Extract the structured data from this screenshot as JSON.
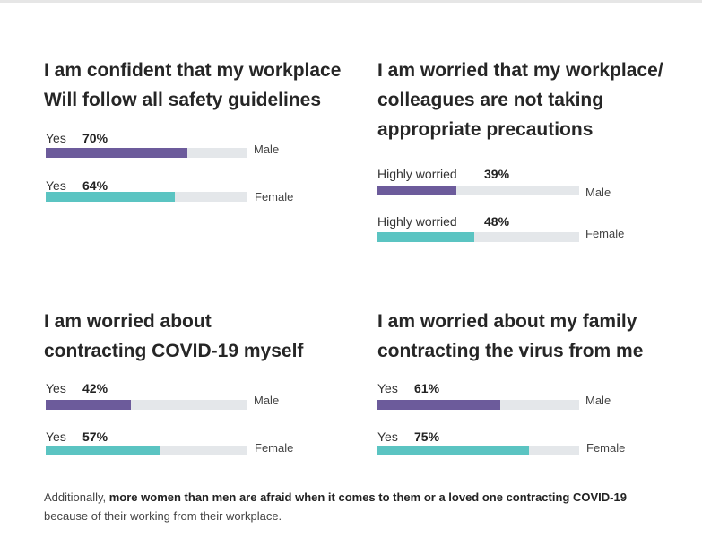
{
  "colors": {
    "male": "#6c5b9b",
    "female": "#5bc4c2",
    "track": "#e4e7ea"
  },
  "chart_data": [
    {
      "type": "bar",
      "title": "I am confident that my workplace Will follow all safety guidelines",
      "title_lines": [
        "I am confident that my workplace",
        "Will follow all safety guidelines"
      ],
      "series": [
        {
          "name": "Male",
          "label": "Yes",
          "value_text": "70%",
          "value": 70
        },
        {
          "name": "Female",
          "label": "Yes",
          "value_text": "64%",
          "value": 64
        }
      ],
      "ylim": [
        0,
        100
      ]
    },
    {
      "type": "bar",
      "title": "I am worried that my workplace/ colleagues are not taking appropriate precautions",
      "title_lines": [
        "I am worried that my workplace/",
        "colleagues are not taking",
        "appropriate precautions"
      ],
      "series": [
        {
          "name": "Male",
          "label": "Highly worried",
          "value_text": "39%",
          "value": 39
        },
        {
          "name": "Female",
          "label": "Highly worried",
          "value_text": "48%",
          "value": 48
        }
      ],
      "ylim": [
        0,
        100
      ]
    },
    {
      "type": "bar",
      "title": "I am worried about contracting COVID-19 myself",
      "title_lines": [
        "I am worried about",
        "contracting COVID-19 myself"
      ],
      "series": [
        {
          "name": "Male",
          "label": "Yes",
          "value_text": "42%",
          "value": 42
        },
        {
          "name": "Female",
          "label": "Yes",
          "value_text": "57%",
          "value": 57
        }
      ],
      "ylim": [
        0,
        100
      ]
    },
    {
      "type": "bar",
      "title": "I am worried about my family contracting the virus from me",
      "title_lines": [
        "I am worried about my family",
        "contracting the virus from me"
      ],
      "series": [
        {
          "name": "Male",
          "label": "Yes",
          "value_text": "61%",
          "value": 61
        },
        {
          "name": "Female",
          "label": "Yes",
          "value_text": "75%",
          "value": 75
        }
      ],
      "ylim": [
        0,
        100
      ]
    }
  ],
  "footer": {
    "prefix": "Additionally, ",
    "bold": "more women than men are afraid when it comes to them or a loved one contracting COVID-19",
    "suffix": "because of their working from their workplace."
  }
}
